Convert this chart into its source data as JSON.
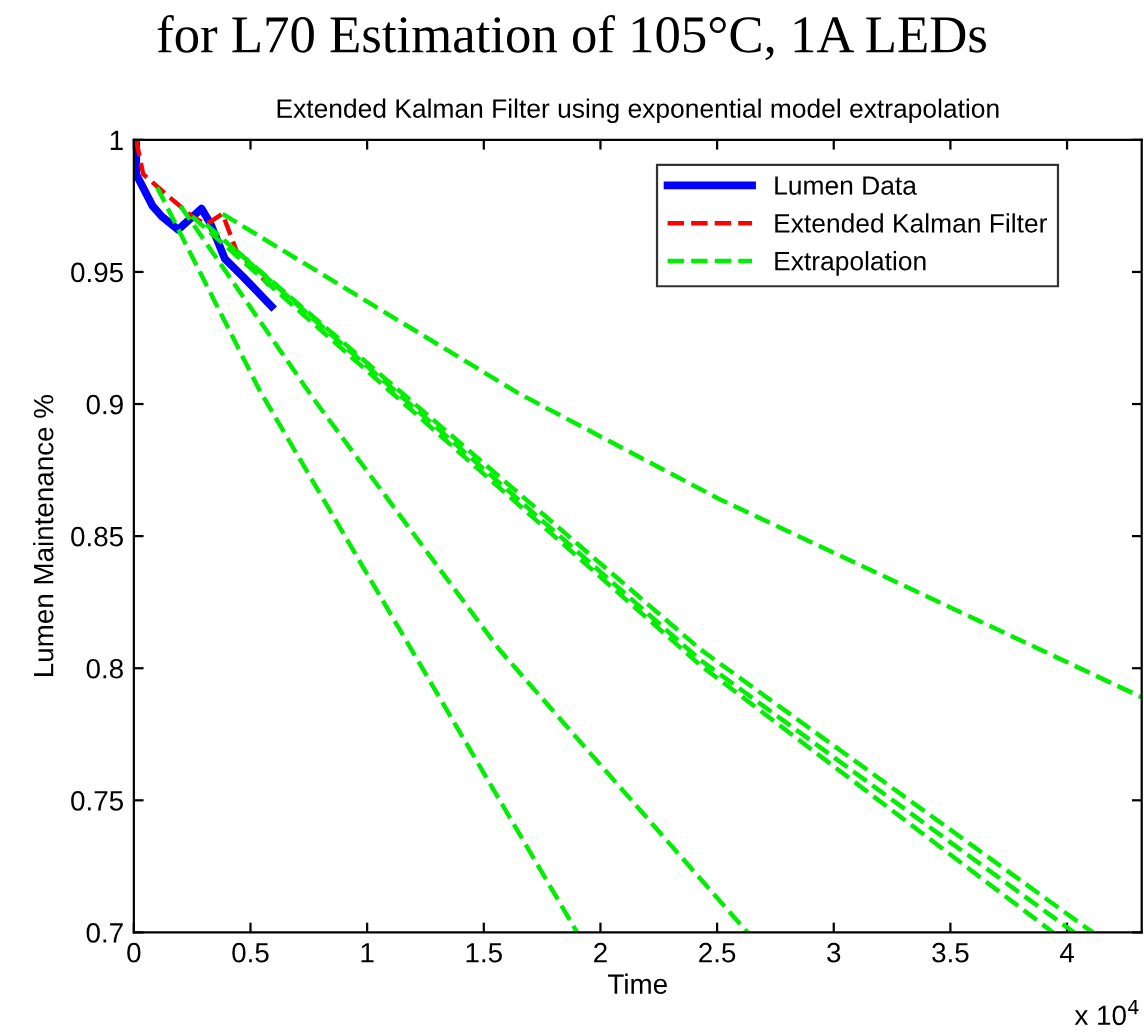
{
  "chart_data": {
    "type": "line",
    "title": "for L70 Estimation of 105°C, 1A LEDs",
    "subtitle": "Extended Kalman Filter using exponential model extrapolation",
    "xlabel": "Time",
    "ylabel": "Lumen Maintenance %",
    "annotations": [
      "x 10$^{4}$"
    ],
    "xlim": [
      0,
      4.32
    ],
    "ylim": [
      0.7,
      1
    ],
    "xticks": [
      0,
      0.5,
      1,
      1.5,
      2,
      2.5,
      3,
      3.5,
      4
    ],
    "yticks": [
      0.7,
      0.75,
      0.8,
      0.85,
      0.9,
      0.95,
      1
    ],
    "grid": false,
    "legend": "top right",
    "marker": "none",
    "series": [
      {
        "name": "Lumen Data",
        "color": "#0000ff",
        "line_style": "solid",
        "x": [
          0.01,
          0.01,
          0.08,
          0.12,
          0.19,
          0.24,
          0.29,
          0.33,
          0.39,
          0.47,
          0.59
        ],
        "values": [
          0.998,
          0.987,
          0.975,
          0.971,
          0.966,
          0.97,
          0.974,
          0.968,
          0.955,
          0.948,
          0.937
        ]
      },
      {
        "name": "Extended Kalman Filter",
        "color": "#ff0000",
        "line_style": "dashed",
        "x": [
          0.01,
          0.04,
          0.13,
          0.25,
          0.31,
          0.38,
          0.44,
          0.58
        ],
        "values": [
          1.0,
          0.987,
          0.98,
          0.971,
          0.968,
          0.972,
          0.958,
          0.945
        ]
      },
      {
        "name": "Extrapolation",
        "color": "#00ee00",
        "line_style": "dashed",
        "x": [
          0.1,
          0.54,
          1.9
        ],
        "values": [
          0.982,
          0.905,
          0.7
        ]
      },
      {
        "color": "#00ee00",
        "line_style": "dashed",
        "x": [
          0.2,
          0.77,
          1.567,
          2.63
        ],
        "values": [
          0.975,
          0.902,
          0.807,
          0.7
        ]
      },
      {
        "color": "#00ee00",
        "line_style": "dashed",
        "x": [
          0.38,
          1.65,
          2.51,
          4.32
        ],
        "values": [
          0.972,
          0.904,
          0.864,
          0.789
        ]
      },
      {
        "color": "#00ee00",
        "line_style": "dashed",
        "x": [
          0.25,
          2.43,
          3.94
        ],
        "values": [
          0.971,
          0.801,
          0.7
        ]
      },
      {
        "color": "#00ee00",
        "line_style": "dashed",
        "x": [
          0.31,
          2.43,
          4.03
        ],
        "values": [
          0.968,
          0.803,
          0.7
        ]
      },
      {
        "color": "#00ee00",
        "line_style": "dashed",
        "x": [
          0.44,
          2.43,
          4.11
        ],
        "values": [
          0.958,
          0.807,
          0.7
        ]
      }
    ]
  }
}
